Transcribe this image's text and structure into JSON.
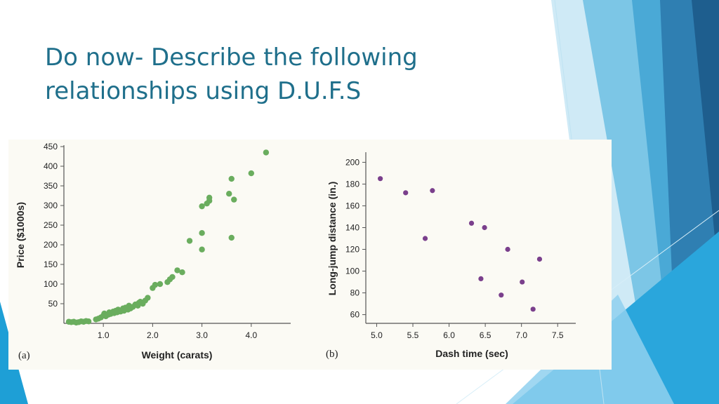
{
  "slide": {
    "title_line1": "Do now- Describe the following",
    "title_line2": "relationships using D.U.F.S"
  },
  "colors": {
    "title": "#1f6f8b",
    "series_a": "#6aad5e",
    "series_b": "#7a3f8c",
    "figure_bg": "#fbfaf4"
  },
  "chart_data": [
    {
      "type": "scatter",
      "panel_label": "(a)",
      "title": "",
      "xlabel": "Weight (carats)",
      "ylabel": "Price ($1000s)",
      "xlim": [
        0.2,
        4.8
      ],
      "ylim": [
        0,
        450
      ],
      "xticks": [
        1.0,
        2.0,
        3.0,
        4.0
      ],
      "xtick_labels": [
        "1.0",
        "2.0",
        "3.0",
        "4.0"
      ],
      "yticks": [
        50,
        100,
        150,
        200,
        250,
        300,
        350,
        400,
        450
      ],
      "ytick_labels": [
        "50",
        "100",
        "150",
        "200",
        "250",
        "300",
        "350",
        "400",
        "450"
      ],
      "grid": false,
      "legend": "none",
      "series": [
        {
          "color": "#6aad5e",
          "points": [
            [
              0.3,
              4
            ],
            [
              0.35,
              3
            ],
            [
              0.4,
              4
            ],
            [
              0.45,
              2
            ],
            [
              0.5,
              3
            ],
            [
              0.55,
              5
            ],
            [
              0.6,
              4
            ],
            [
              0.65,
              6
            ],
            [
              0.7,
              5
            ],
            [
              0.85,
              10
            ],
            [
              0.9,
              12
            ],
            [
              0.95,
              15
            ],
            [
              1.0,
              20
            ],
            [
              1.02,
              25
            ],
            [
              1.05,
              18
            ],
            [
              1.1,
              22
            ],
            [
              1.12,
              28
            ],
            [
              1.15,
              24
            ],
            [
              1.2,
              30
            ],
            [
              1.22,
              26
            ],
            [
              1.25,
              32
            ],
            [
              1.28,
              28
            ],
            [
              1.3,
              35
            ],
            [
              1.35,
              30
            ],
            [
              1.4,
              38
            ],
            [
              1.42,
              32
            ],
            [
              1.45,
              40
            ],
            [
              1.5,
              35
            ],
            [
              1.52,
              45
            ],
            [
              1.55,
              38
            ],
            [
              1.6,
              42
            ],
            [
              1.65,
              48
            ],
            [
              1.7,
              45
            ],
            [
              1.72,
              52
            ],
            [
              1.75,
              55
            ],
            [
              1.8,
              50
            ],
            [
              1.85,
              58
            ],
            [
              1.9,
              65
            ],
            [
              2.0,
              90
            ],
            [
              2.05,
              98
            ],
            [
              2.15,
              100
            ],
            [
              2.3,
              105
            ],
            [
              2.35,
              112
            ],
            [
              2.4,
              118
            ],
            [
              2.5,
              135
            ],
            [
              2.6,
              130
            ],
            [
              2.75,
              210
            ],
            [
              3.0,
              188
            ],
            [
              3.0,
              230
            ],
            [
              3.0,
              298
            ],
            [
              3.1,
              305
            ],
            [
              3.15,
              320
            ],
            [
              3.15,
              312
            ],
            [
              3.55,
              330
            ],
            [
              3.6,
              368
            ],
            [
              3.6,
              218
            ],
            [
              3.65,
              315
            ],
            [
              4.0,
              382
            ],
            [
              4.3,
              435
            ]
          ]
        }
      ]
    },
    {
      "type": "scatter",
      "panel_label": "(b)",
      "title": "",
      "xlabel": "Dash time (sec)",
      "ylabel": "Long-jump distance (in.)",
      "xlim": [
        4.85,
        7.75
      ],
      "ylim": [
        52,
        208
      ],
      "xticks": [
        5.0,
        5.5,
        6.0,
        6.5,
        7.0,
        7.5
      ],
      "xtick_labels": [
        "5.0",
        "5.5",
        "6.0",
        "6.5",
        "7.0",
        "7.5"
      ],
      "yticks": [
        60,
        80,
        100,
        120,
        140,
        160,
        180,
        200
      ],
      "ytick_labels": [
        "60",
        "80",
        "100",
        "120",
        "140",
        "160",
        "180",
        "200"
      ],
      "grid": false,
      "legend": "none",
      "series": [
        {
          "color": "#7a3f8c",
          "points": [
            [
              5.05,
              185
            ],
            [
              5.4,
              172
            ],
            [
              5.67,
              130
            ],
            [
              5.77,
              174
            ],
            [
              6.31,
              144
            ],
            [
              6.44,
              93
            ],
            [
              6.49,
              140
            ],
            [
              6.72,
              78
            ],
            [
              6.81,
              120
            ],
            [
              7.01,
              90
            ],
            [
              7.16,
              65
            ],
            [
              7.25,
              111
            ]
          ]
        }
      ]
    }
  ]
}
